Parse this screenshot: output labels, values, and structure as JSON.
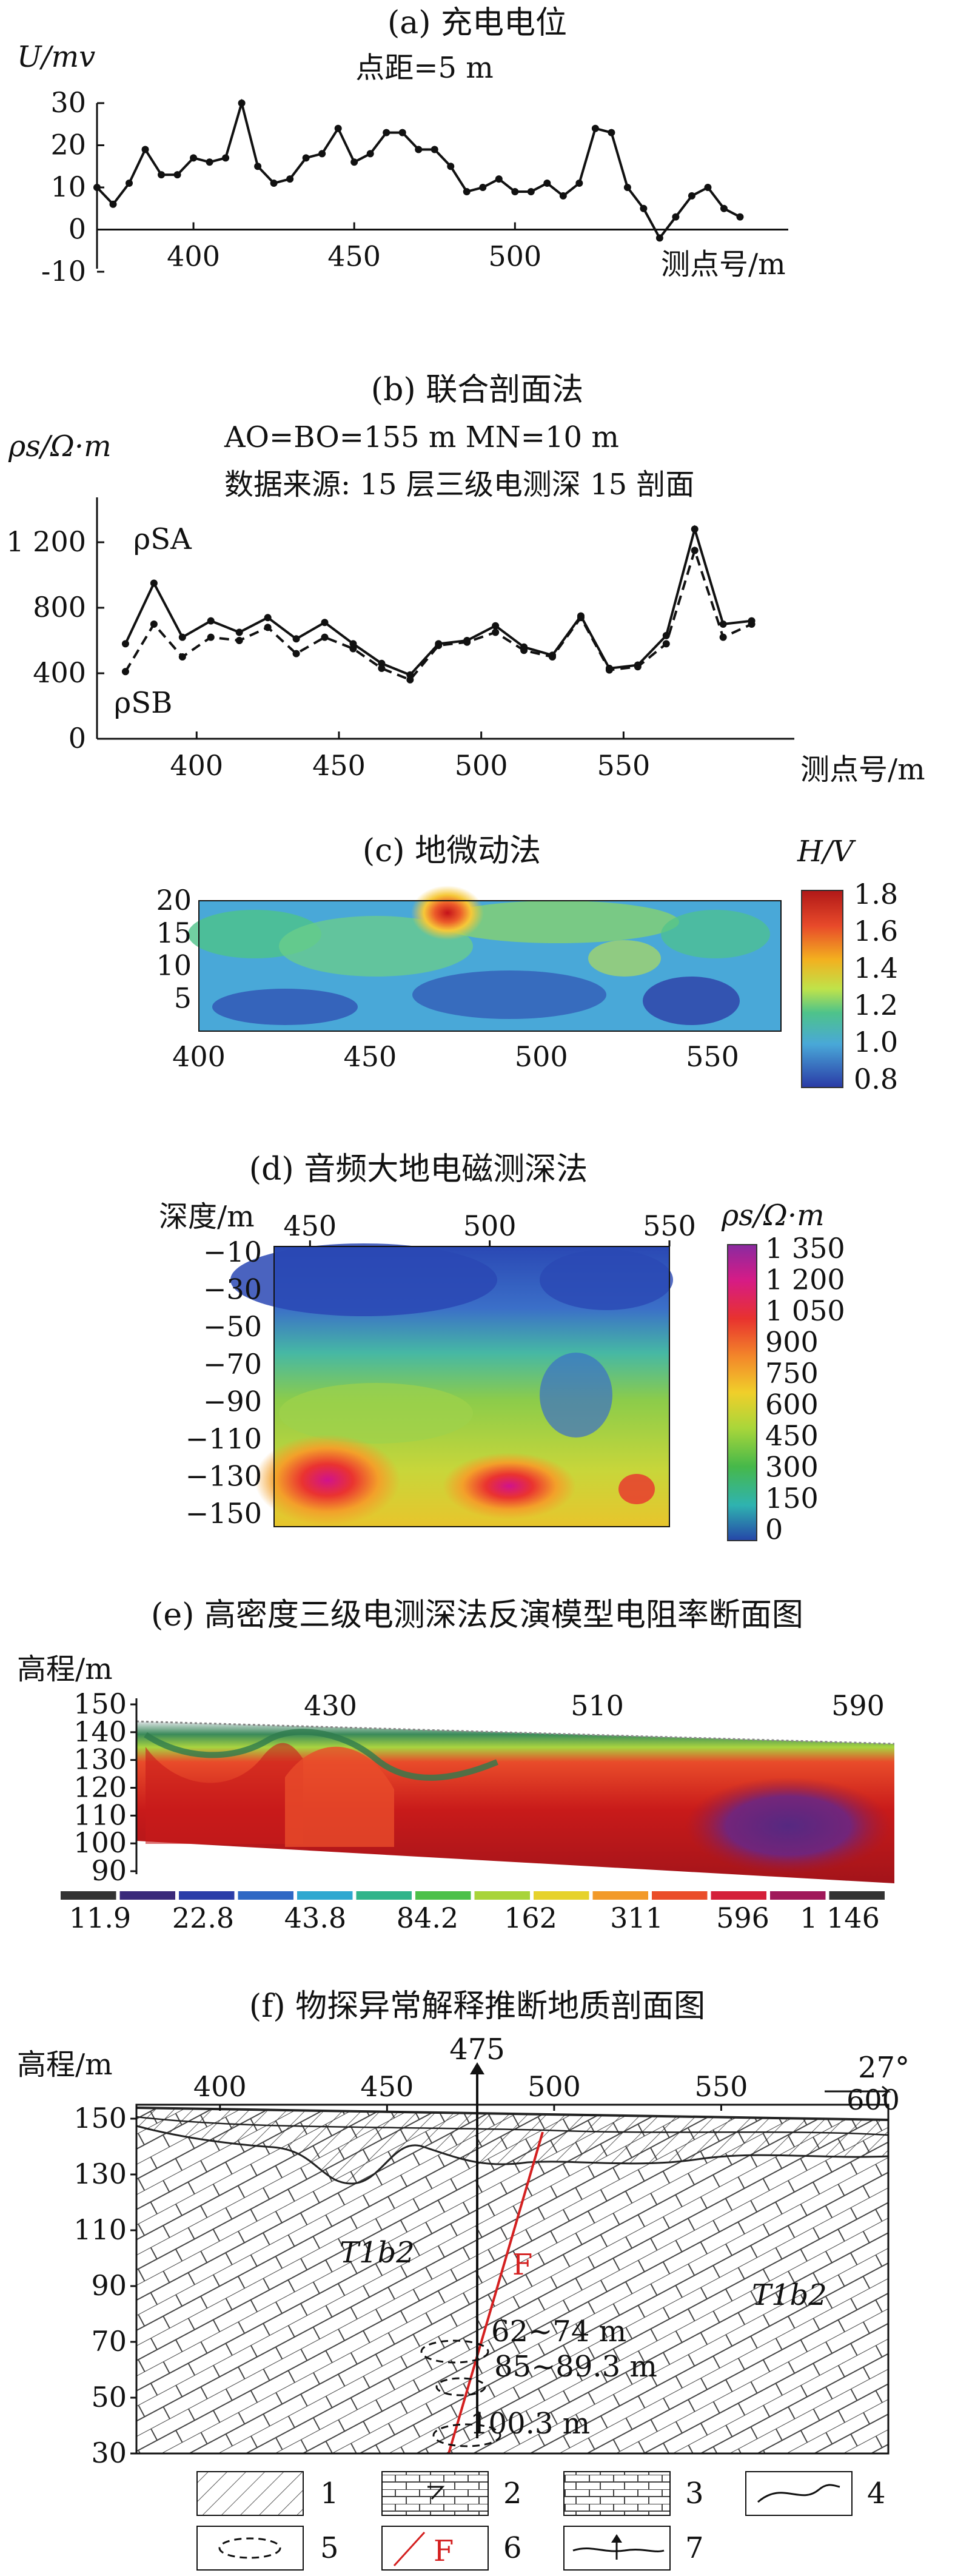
{
  "panel_a": {
    "title": "(a) 充电电位",
    "ylabel": "U/mv",
    "note": "点距=5 m",
    "xlabel": "测点号/m",
    "chart_data": {
      "type": "line",
      "x": [
        370,
        375,
        380,
        385,
        390,
        395,
        400,
        405,
        410,
        415,
        420,
        425,
        430,
        435,
        440,
        445,
        450,
        455,
        460,
        465,
        470,
        475,
        480,
        485,
        490,
        495,
        500,
        505,
        510,
        515,
        520,
        525,
        530,
        535,
        540,
        545,
        550,
        555,
        560,
        565,
        570
      ],
      "series": [
        {
          "values": [
            10,
            6,
            11,
            19,
            13,
            13,
            17,
            16,
            17,
            30,
            15,
            11,
            12,
            17,
            18,
            24,
            16,
            18,
            23,
            23,
            19,
            19,
            15,
            9,
            10,
            12,
            9,
            9,
            11,
            8,
            11,
            24,
            23,
            10,
            5,
            -2,
            3,
            8,
            10,
            5,
            3
          ]
        }
      ],
      "xticks": [
        400,
        450,
        500
      ],
      "yticks": [
        30,
        20,
        10,
        0,
        -10
      ],
      "ylim": [
        -10,
        30
      ]
    }
  },
  "panel_b": {
    "title": "(b) 联合剖面法",
    "ylabel": "ρs/Ω·m",
    "note1": "AO=BO=155 m MN=10 m",
    "note2": "数据来源: 15 层三级电测深 15 剖面",
    "xlabel": "测点号/m",
    "legend_a": "ρSA",
    "legend_b": "ρSB",
    "chart_data": {
      "type": "line",
      "x": [
        375,
        385,
        395,
        405,
        415,
        425,
        435,
        445,
        455,
        465,
        475,
        485,
        495,
        505,
        515,
        525,
        535,
        545,
        555,
        565,
        575,
        585,
        595
      ],
      "series": [
        {
          "name": "ρSA",
          "values": [
            580,
            950,
            620,
            720,
            650,
            740,
            610,
            710,
            580,
            460,
            390,
            580,
            600,
            690,
            560,
            510,
            750,
            430,
            450,
            630,
            1280,
            700,
            720
          ]
        },
        {
          "name": "ρSB",
          "values": [
            410,
            700,
            500,
            620,
            600,
            680,
            520,
            620,
            550,
            430,
            360,
            570,
            590,
            650,
            540,
            500,
            740,
            420,
            440,
            580,
            1150,
            620,
            700
          ]
        }
      ],
      "xticks": [
        400,
        450,
        500,
        550
      ],
      "yticks": [
        "1 200",
        "800",
        "400",
        "0"
      ],
      "ylim": [
        0,
        1400
      ]
    }
  },
  "panel_c": {
    "title": "(c) 地微动法",
    "unit": "H/V",
    "chart_data": {
      "type": "heatmap",
      "xticks": [
        400,
        450,
        500,
        550
      ],
      "yticks": [
        20,
        15,
        10,
        5
      ],
      "colorbar": [
        "1.8",
        "1.6",
        "1.4",
        "1.2",
        "1.0",
        "0.8"
      ]
    }
  },
  "panel_d": {
    "title": "(d) 音频大地电磁测深法",
    "ylabel": "深度/m",
    "unit": "ρs/Ω·m",
    "chart_data": {
      "type": "heatmap",
      "xticks": [
        450,
        500,
        550
      ],
      "yticks": [
        -10,
        -30,
        -50,
        -70,
        -90,
        -110,
        -130,
        -150
      ],
      "colorbar": [
        "1 350",
        "1 200",
        "1 050",
        "900",
        "750",
        "600",
        "450",
        "300",
        "150",
        "0"
      ]
    }
  },
  "panel_e": {
    "title": "(e) 高密度三级电测深法反演模型电阻率断面图",
    "ylabel": "高程/m",
    "chart_data": {
      "type": "heatmap",
      "xticks": [
        430,
        510,
        590
      ],
      "yticks": [
        150,
        140,
        130,
        120,
        110,
        100,
        90
      ],
      "colorbar": [
        "11.9",
        "22.8",
        "43.8",
        "84.2",
        "162",
        "311",
        "596",
        "1 146"
      ]
    }
  },
  "panel_f": {
    "title": "(f) 物探异常解释推断地质剖面图",
    "ylabel": "高程/m",
    "xticks": [
      400,
      450,
      500,
      550,
      600
    ],
    "yticks": [
      150,
      130,
      110,
      90,
      70,
      50,
      30
    ],
    "well": "475",
    "dip": "27°",
    "fault": "F",
    "strata_left": "T1b2",
    "strata_right": "T1b2",
    "cave1": "62~74 m",
    "cave2": "85~89.3 m",
    "cave3": "100.3 m",
    "legend": [
      "1",
      "2",
      "3",
      "4",
      "5",
      "6",
      "7"
    ],
    "legend_fault_label": "F"
  },
  "colors": {
    "fault": "#d42020",
    "ink": "#111111"
  }
}
